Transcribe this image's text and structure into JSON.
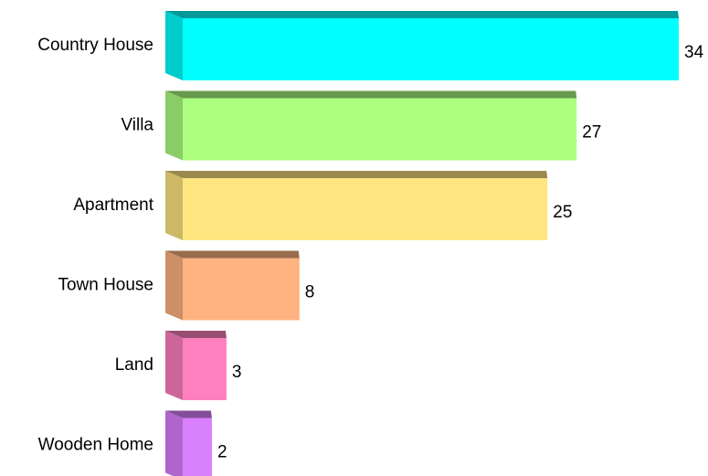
{
  "chart_data": {
    "type": "bar3d",
    "categories": [
      "Country House",
      "Villa",
      "Apartment",
      "Town House",
      "Land",
      "Wooden Home"
    ],
    "values": [
      34,
      27,
      25,
      8,
      3,
      2
    ],
    "colors": [
      "#00ffff",
      "#adff7f",
      "#ffe680",
      "#ffb380",
      "#ff80bf",
      "#d980ff"
    ]
  }
}
